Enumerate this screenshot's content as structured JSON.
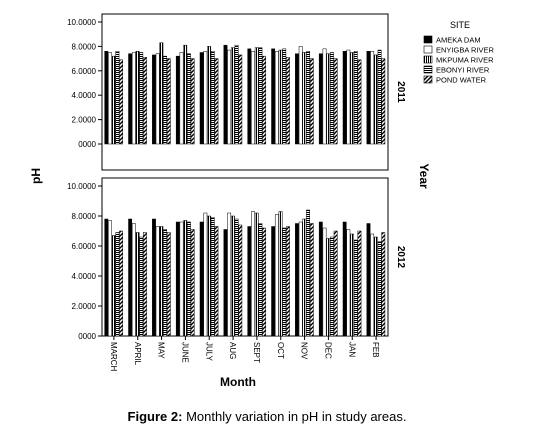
{
  "figure": {
    "caption_label": "Figure 2:",
    "caption_text": "Monthly variation in pH in study areas."
  },
  "chart_data": {
    "type": "bar",
    "ylabel": "pH",
    "xlabel": "Month",
    "facet_label": "Year",
    "legend_title": "SITE",
    "legend_position": "top-right",
    "ylim": [
      0,
      10
    ],
    "yticks": [
      "0000",
      "2.0000",
      "4.0000",
      "6.0000",
      "8.0000",
      "10.0000"
    ],
    "categories": [
      "MARCH",
      "APRIL",
      "MAY",
      "JUNE",
      "JULY",
      "AUG",
      "SEPT",
      "OCT",
      "NOV",
      "DEC",
      "JAN",
      "FEB"
    ],
    "series_names": [
      "AMEKA DAM",
      "ENYIGBA RIVER",
      "MKPUMA RIVER",
      "EBONYI RIVER",
      "POND WATER"
    ],
    "panels": [
      {
        "year": "2011",
        "series": [
          {
            "name": "AMEKA DAM",
            "values": [
              7.6,
              7.4,
              7.3,
              7.2,
              7.5,
              8.1,
              7.8,
              7.8,
              7.4,
              7.4,
              7.6,
              7.6
            ]
          },
          {
            "name": "ENYIGBA RIVER",
            "values": [
              7.5,
              7.5,
              7.4,
              7.5,
              7.6,
              7.7,
              7.6,
              7.6,
              8.0,
              7.8,
              7.7,
              7.6
            ]
          },
          {
            "name": "MKPUMA RIVER",
            "values": [
              7.2,
              7.6,
              8.3,
              8.1,
              8.0,
              7.9,
              7.9,
              7.7,
              7.5,
              7.4,
              7.5,
              7.3
            ]
          },
          {
            "name": "EBONYI RIVER",
            "values": [
              7.6,
              7.5,
              7.2,
              7.4,
              7.6,
              8.1,
              7.9,
              7.8,
              7.6,
              7.5,
              7.6,
              7.7
            ]
          },
          {
            "name": "POND WATER",
            "values": [
              6.9,
              7.1,
              7.0,
              7.0,
              7.0,
              7.3,
              7.2,
              7.1,
              7.0,
              7.0,
              6.9,
              7.0
            ]
          }
        ]
      },
      {
        "year": "2012",
        "series": [
          {
            "name": "AMEKA DAM",
            "values": [
              7.8,
              7.8,
              7.8,
              7.6,
              7.6,
              7.1,
              7.3,
              7.3,
              7.5,
              7.6,
              7.6,
              7.5
            ]
          },
          {
            "name": "ENYIGBA RIVER",
            "values": [
              7.7,
              7.5,
              7.3,
              7.6,
              8.2,
              8.2,
              8.3,
              8.1,
              7.6,
              7.2,
              7.1,
              6.8
            ]
          },
          {
            "name": "MKPUMA RIVER",
            "values": [
              6.7,
              6.9,
              7.3,
              7.7,
              8.0,
              8.0,
              8.2,
              8.3,
              7.8,
              6.5,
              6.8,
              6.6
            ]
          },
          {
            "name": "EBONYI RIVER",
            "values": [
              6.9,
              6.6,
              7.1,
              7.6,
              7.9,
              7.8,
              7.5,
              7.2,
              8.4,
              6.6,
              6.4,
              6.3
            ]
          },
          {
            "name": "POND WATER",
            "values": [
              7.0,
              6.9,
              6.9,
              7.1,
              7.3,
              7.4,
              7.2,
              7.3,
              7.5,
              7.0,
              7.0,
              6.9
            ]
          }
        ]
      }
    ]
  }
}
